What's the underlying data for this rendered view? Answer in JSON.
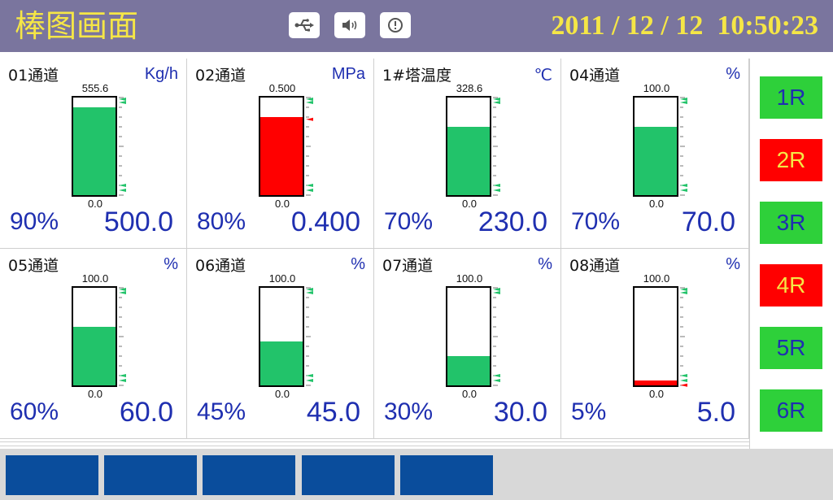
{
  "header": {
    "title": "棒图画面",
    "icons": [
      "usb-icon",
      "speaker-icon",
      "alert-icon"
    ],
    "datetime": "2011 / 12 / 12  10:50:23"
  },
  "channels": [
    {
      "name": "01通道",
      "unit": "Kg/h",
      "top": "555.6",
      "bottom": "0.0",
      "percent": "90%",
      "value": "500.0",
      "level": 0.9,
      "color": "#22c36a"
    },
    {
      "name": "02通道",
      "unit": "MPa",
      "top": "0.500",
      "bottom": "0.0",
      "percent": "80%",
      "value": "0.400",
      "level": 0.8,
      "color": "#ff0000"
    },
    {
      "name": "1#塔温度",
      "unit": "℃",
      "top": "328.6",
      "bottom": "0.0",
      "percent": "70%",
      "value": "230.0",
      "level": 0.7,
      "color": "#22c36a"
    },
    {
      "name": "04通道",
      "unit": "%",
      "top": "100.0",
      "bottom": "0.0",
      "percent": "70%",
      "value": "70.0",
      "level": 0.7,
      "color": "#22c36a"
    },
    {
      "name": "05通道",
      "unit": "%",
      "top": "100.0",
      "bottom": "0.0",
      "percent": "60%",
      "value": "60.0",
      "level": 0.6,
      "color": "#22c36a"
    },
    {
      "name": "06通道",
      "unit": "%",
      "top": "100.0",
      "bottom": "0.0",
      "percent": "45%",
      "value": "45.0",
      "level": 0.45,
      "color": "#22c36a"
    },
    {
      "name": "07通道",
      "unit": "%",
      "top": "100.0",
      "bottom": "0.0",
      "percent": "30%",
      "value": "30.0",
      "level": 0.3,
      "color": "#22c36a"
    },
    {
      "name": "08通道",
      "unit": "%",
      "top": "100.0",
      "bottom": "0.0",
      "percent": "5%",
      "value": "5.0",
      "level": 0.05,
      "color": "#ff0000"
    }
  ],
  "relays": [
    {
      "label": "1R",
      "bg": "#2ed03a",
      "fg": "#1f2fb0"
    },
    {
      "label": "2R",
      "bg": "#ff0000",
      "fg": "#f5e646"
    },
    {
      "label": "3R",
      "bg": "#2ed03a",
      "fg": "#1f2fb0"
    },
    {
      "label": "4R",
      "bg": "#ff0000",
      "fg": "#f5e646"
    },
    {
      "label": "5R",
      "bg": "#2ed03a",
      "fg": "#1f2fb0"
    },
    {
      "label": "6R",
      "bg": "#2ed03a",
      "fg": "#1f2fb0"
    }
  ],
  "colors": {
    "header_bg": "#7a759e",
    "accent_text": "#f5e646",
    "value_text": "#1f2fb0",
    "footer_button": "#0a4d9c"
  }
}
